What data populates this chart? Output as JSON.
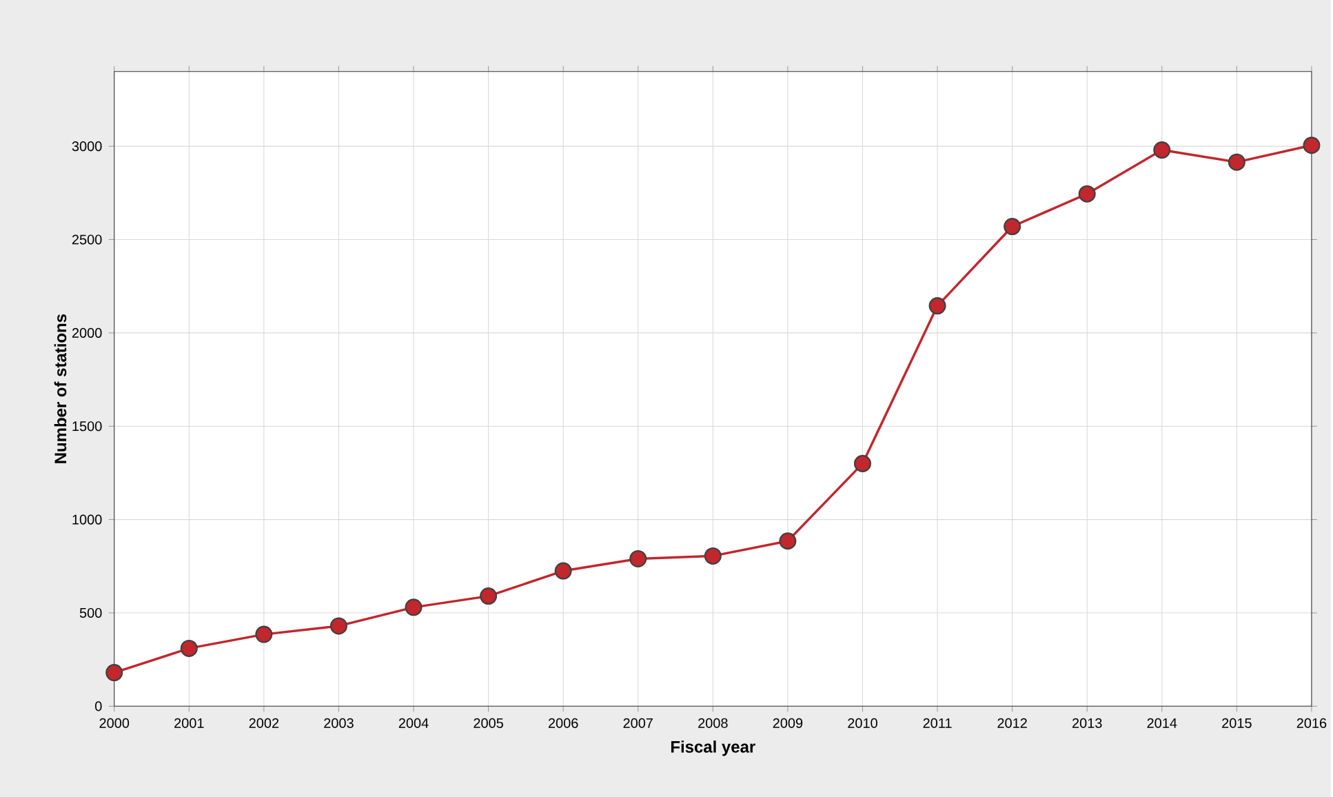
{
  "chart_data": {
    "type": "line",
    "xlabel": "Fiscal year",
    "ylabel": "Number of stations",
    "x": [
      2000,
      2001,
      2002,
      2003,
      2004,
      2005,
      2006,
      2007,
      2008,
      2009,
      2010,
      2011,
      2012,
      2013,
      2014,
      2015,
      2016
    ],
    "series": [
      {
        "color": "#c1272d",
        "values": [
          180,
          310,
          385,
          430,
          530,
          590,
          725,
          790,
          805,
          885,
          1300,
          2145,
          2570,
          2745,
          2980,
          2915,
          3005
        ]
      }
    ],
    "xlim": [
      2000,
      2016
    ],
    "ylim": [
      0,
      3400
    ],
    "xticks": [
      2000,
      2001,
      2002,
      2003,
      2004,
      2005,
      2006,
      2007,
      2008,
      2009,
      2010,
      2011,
      2012,
      2013,
      2014,
      2015,
      2016
    ],
    "yticks": [
      0,
      500,
      1000,
      1500,
      2000,
      2500,
      3000
    ],
    "grid": true,
    "marker": "circle",
    "line_style": "solid"
  }
}
